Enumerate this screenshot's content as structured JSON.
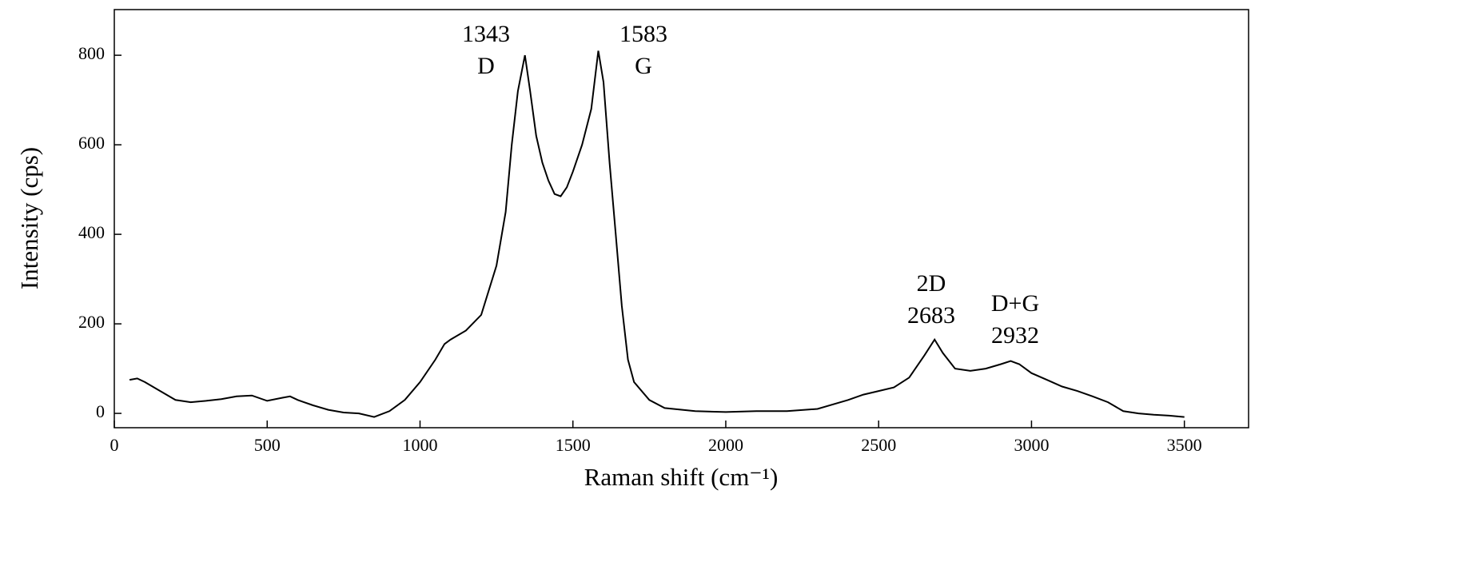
{
  "chart_data": {
    "type": "line",
    "x_label": "Raman shift (cm⁻¹)",
    "y_label": "Intensity (cps)",
    "x": [
      50,
      75,
      100,
      150,
      200,
      250,
      300,
      350,
      400,
      450,
      500,
      550,
      575,
      600,
      650,
      700,
      750,
      800,
      850,
      900,
      950,
      1000,
      1050,
      1080,
      1100,
      1150,
      1200,
      1250,
      1280,
      1300,
      1320,
      1343,
      1360,
      1380,
      1400,
      1420,
      1440,
      1460,
      1480,
      1500,
      1530,
      1560,
      1583,
      1600,
      1620,
      1640,
      1660,
      1680,
      1700,
      1750,
      1800,
      1900,
      2000,
      2100,
      2200,
      2300,
      2400,
      2450,
      2500,
      2550,
      2600,
      2650,
      2683,
      2710,
      2750,
      2800,
      2850,
      2900,
      2932,
      2960,
      3000,
      3050,
      3100,
      3150,
      3200,
      3250,
      3300,
      3350,
      3400,
      3450,
      3500
    ],
    "values": [
      75,
      78,
      70,
      50,
      30,
      25,
      28,
      32,
      38,
      40,
      28,
      35,
      38,
      30,
      18,
      8,
      2,
      0,
      -8,
      5,
      30,
      70,
      120,
      155,
      165,
      185,
      220,
      330,
      450,
      600,
      720,
      800,
      720,
      620,
      560,
      520,
      490,
      485,
      505,
      540,
      600,
      680,
      810,
      740,
      560,
      400,
      240,
      120,
      70,
      30,
      12,
      5,
      3,
      5,
      5,
      10,
      30,
      42,
      50,
      58,
      80,
      130,
      165,
      135,
      100,
      95,
      100,
      110,
      117,
      110,
      90,
      75,
      60,
      50,
      38,
      25,
      5,
      0,
      -3,
      -5,
      -8
    ],
    "color": "#000000",
    "xlim": [
      0,
      3710
    ],
    "ylim": [
      -32,
      902
    ],
    "xticks": [
      0,
      500,
      1000,
      1500,
      2000,
      2500,
      3000,
      3500
    ],
    "yticks": [
      0,
      200,
      400,
      600,
      800
    ],
    "annotations": [
      [
        "1343",
        "D"
      ],
      [
        "1583",
        "G"
      ],
      [
        "2D",
        "2683"
      ],
      [
        "D+G",
        "2932"
      ]
    ]
  }
}
